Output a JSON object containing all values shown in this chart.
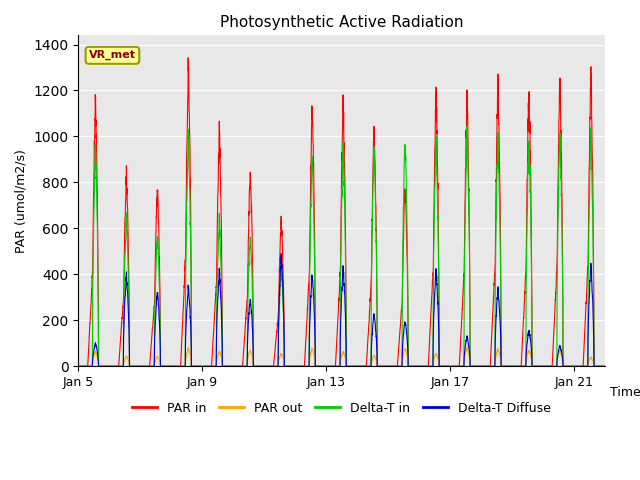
{
  "title": "Photosynthetic Active Radiation",
  "ylabel": "PAR (umol/m2/s)",
  "xlabel": "Time",
  "station_label": "VR_met",
  "ylim": [
    0,
    1440
  ],
  "yticks": [
    0,
    200,
    400,
    600,
    800,
    1000,
    1200,
    1400
  ],
  "fig_bg_color": "#ffffff",
  "plot_bg_color": "#e8e8e8",
  "grid_color": "#ffffff",
  "legend_entries": [
    "PAR in",
    "PAR out",
    "Delta-T in",
    "Delta-T Diffuse"
  ],
  "line_colors": {
    "PAR_in": "#ff0000",
    "PAR_out": "#ffa500",
    "DeltaT_in": "#00cc00",
    "DeltaT_Diffuse": "#0000cc"
  },
  "x_tick_labels": [
    "Jan 5",
    "Jan 9",
    "Jan 13",
    "Jan 17",
    "Jan 21"
  ],
  "x_tick_positions": [
    0,
    4,
    8,
    12,
    16
  ],
  "num_days": 17,
  "pts_per_day": 200,
  "par_in_peaks": [
    1160,
    850,
    790,
    1330,
    1025,
    870,
    640,
    1140,
    1160,
    1050,
    800,
    1200,
    1175,
    1250,
    1230,
    1260,
    1280
  ],
  "par_out_peaks": [
    80,
    55,
    55,
    100,
    80,
    90,
    70,
    100,
    80,
    60,
    100,
    70,
    100,
    95,
    90,
    85,
    50
  ],
  "delta_in_peaks": [
    950,
    650,
    580,
    1020,
    640,
    580,
    420,
    920,
    960,
    960,
    1000,
    990,
    1020,
    1000,
    1010,
    1020,
    1020
  ],
  "delta_diff_peaks": [
    100,
    400,
    330,
    350,
    410,
    300,
    480,
    400,
    430,
    230,
    200,
    420,
    130,
    340,
    160,
    90,
    440
  ]
}
